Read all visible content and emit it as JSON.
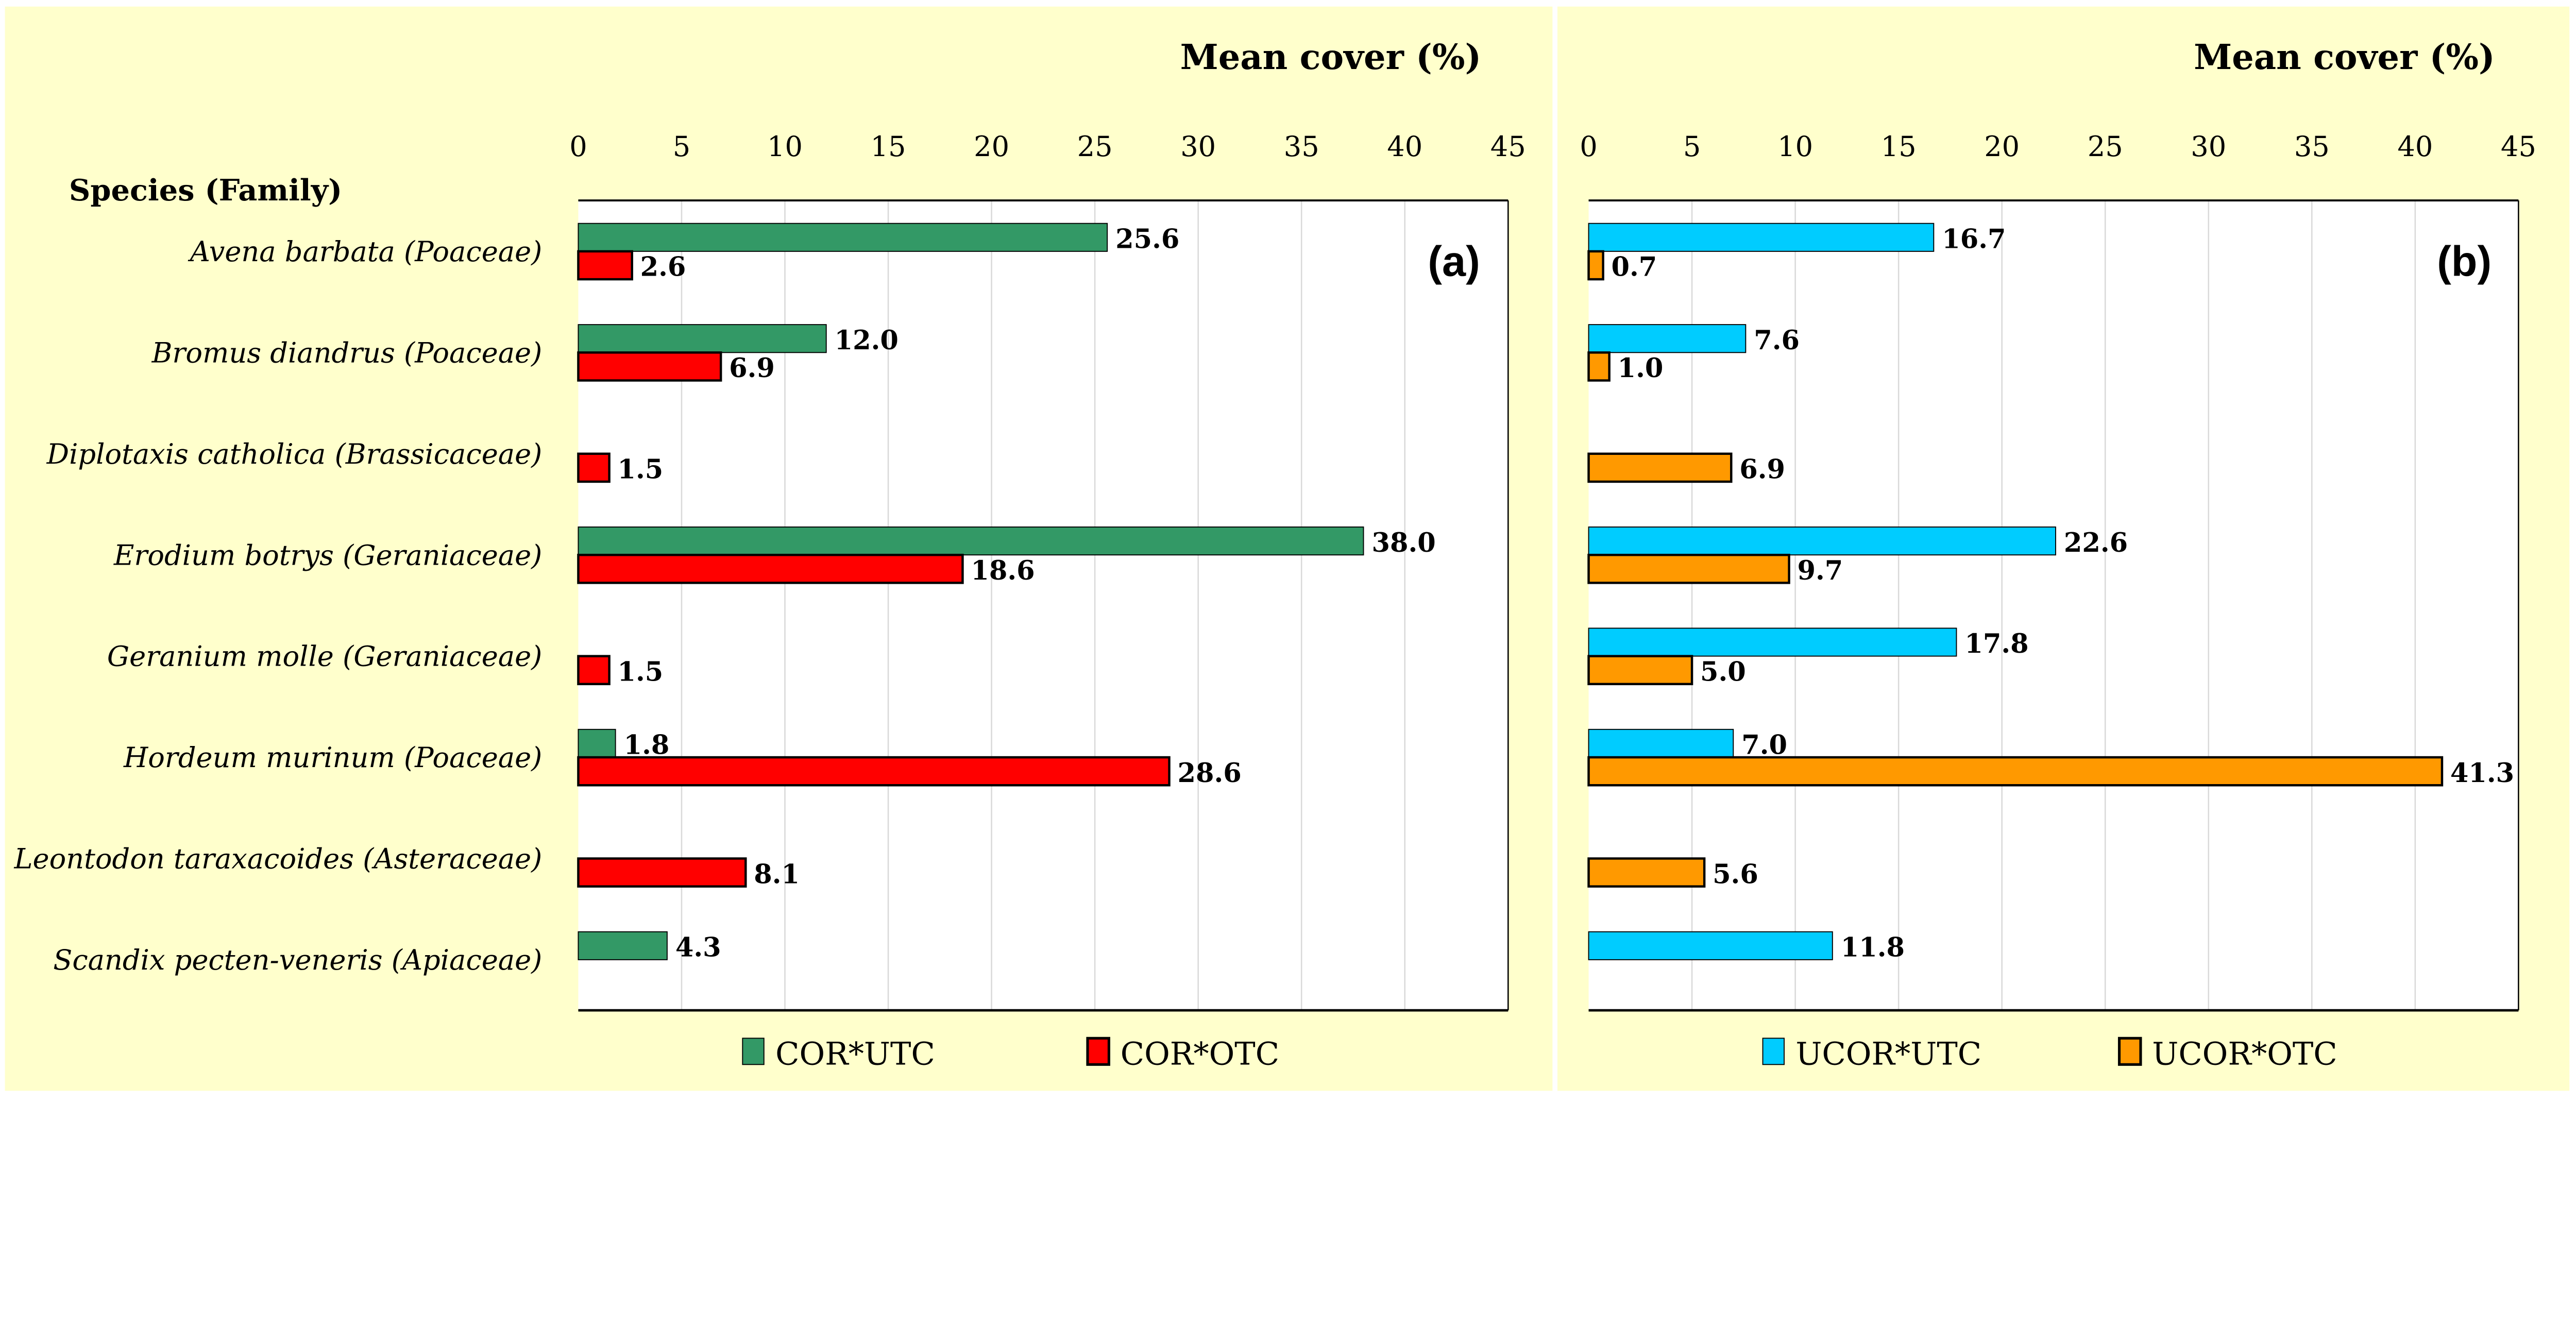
{
  "chart_data": [
    {
      "type": "bar",
      "orientation": "horizontal",
      "panel_label": "(a)",
      "xlabel": "Mean cover (%)",
      "ylabel": "Species (Family)",
      "xlim": [
        0,
        45
      ],
      "xticks": [
        "0",
        "5",
        "10",
        "15",
        "20",
        "25",
        "30",
        "35",
        "40",
        "45"
      ],
      "grid": true,
      "legend_position": "bottom",
      "categories": [
        "Avena barbata (Poaceae)",
        "Bromus diandrus (Poaceae)",
        "Diplotaxis catholica (Brassicaceae)",
        "Erodium botrys (Geraniaceae)",
        "Geranium molle (Geraniaceae)",
        "Hordeum murinum (Poaceae)",
        "Leontodon taraxacoides (Asteraceae)",
        "Scandix pecten-veneris (Apiaceae)"
      ],
      "series": [
        {
          "name": "COR*UTC",
          "color": "#339966",
          "values": [
            25.6,
            12.0,
            null,
            38.0,
            null,
            1.8,
            null,
            4.3
          ]
        },
        {
          "name": "COR*OTC",
          "color": "#ff0000",
          "values": [
            2.6,
            6.9,
            1.5,
            18.6,
            1.5,
            28.6,
            8.1,
            null
          ]
        }
      ]
    },
    {
      "type": "bar",
      "orientation": "horizontal",
      "panel_label": "(b)",
      "xlabel": "Mean cover (%)",
      "xlim": [
        0,
        45
      ],
      "xticks": [
        "0",
        "5",
        "10",
        "15",
        "20",
        "25",
        "30",
        "35",
        "40",
        "45"
      ],
      "grid": true,
      "legend_position": "bottom",
      "categories": [
        "Avena barbata (Poaceae)",
        "Bromus diandrus (Poaceae)",
        "Diplotaxis catholica (Brassicaceae)",
        "Erodium botrys (Geraniaceae)",
        "Geranium molle (Geraniaceae)",
        "Hordeum murinum (Poaceae)",
        "Leontodon taraxacoides (Asteraceae)",
        "Scandix pecten-veneris (Apiaceae)"
      ],
      "series": [
        {
          "name": "UCOR*UTC",
          "color": "#00ccff",
          "values": [
            16.7,
            7.6,
            null,
            22.6,
            17.8,
            7.0,
            null,
            11.8
          ]
        },
        {
          "name": "UCOR*OTC",
          "color": "#ff9900",
          "values": [
            0.7,
            1.0,
            6.9,
            9.7,
            5.0,
            41.3,
            5.6,
            null
          ]
        }
      ]
    }
  ],
  "background_color": "#ffffcc"
}
